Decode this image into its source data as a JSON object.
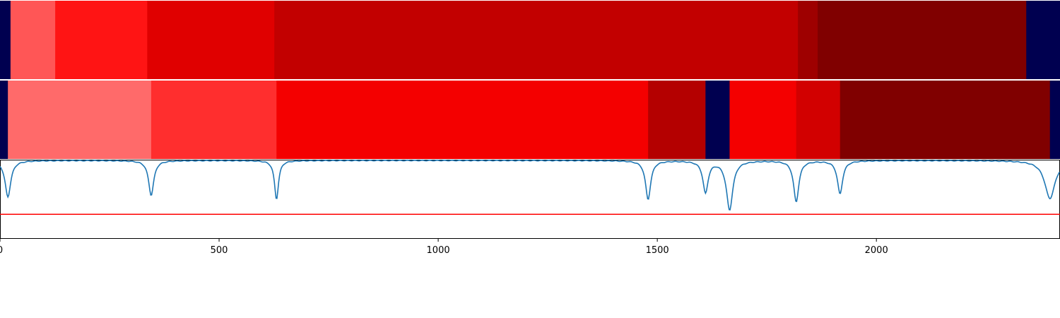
{
  "chart_data": {
    "type": "heatmap",
    "x_range": [
      0,
      2419
    ],
    "x_ticks": [
      0,
      500,
      1000,
      1500,
      2000
    ],
    "x_tick_labels": [
      "0",
      "500",
      "1000",
      "1500",
      "2000"
    ],
    "tracks": [
      {
        "segments": [
          {
            "start": 0,
            "end": 24,
            "color": "#000050"
          },
          {
            "start": 24,
            "end": 126,
            "color": "#ff5656"
          },
          {
            "start": 126,
            "end": 336,
            "color": "#ff1414"
          },
          {
            "start": 336,
            "end": 626,
            "color": "#e00000"
          },
          {
            "start": 626,
            "end": 1821,
            "color": "#c20000"
          },
          {
            "start": 1821,
            "end": 1866,
            "color": "#9e0000"
          },
          {
            "start": 1866,
            "end": 2342,
            "color": "#800000"
          },
          {
            "start": 2342,
            "end": 2419,
            "color": "#000050"
          }
        ]
      },
      {
        "segments": [
          {
            "start": 0,
            "end": 18,
            "color": "#000050"
          },
          {
            "start": 18,
            "end": 345,
            "color": "#ff6a6a"
          },
          {
            "start": 345,
            "end": 631,
            "color": "#ff2e2e"
          },
          {
            "start": 631,
            "end": 1479,
            "color": "#f40000"
          },
          {
            "start": 1479,
            "end": 1610,
            "color": "#b40000"
          },
          {
            "start": 1610,
            "end": 1665,
            "color": "#000050"
          },
          {
            "start": 1665,
            "end": 1817,
            "color": "#f40000"
          },
          {
            "start": 1817,
            "end": 1917,
            "color": "#d20000"
          },
          {
            "start": 1917,
            "end": 2396,
            "color": "#800000"
          },
          {
            "start": 2396,
            "end": 2419,
            "color": "#000050"
          }
        ]
      }
    ],
    "line": {
      "color": "#1f77b4",
      "y_range": [
        0,
        1
      ],
      "baseline": 0.99,
      "dips": [
        {
          "x": 18,
          "depth": 0.46,
          "width": 10
        },
        {
          "x": 345,
          "depth": 0.44,
          "width": 9
        },
        {
          "x": 631,
          "depth": 0.49,
          "width": 7
        },
        {
          "x": 1479,
          "depth": 0.49,
          "width": 9
        },
        {
          "x": 1610,
          "depth": 0.4,
          "width": 9
        },
        {
          "x": 1665,
          "depth": 0.62,
          "width": 11
        },
        {
          "x": 1817,
          "depth": 0.52,
          "width": 9
        },
        {
          "x": 1917,
          "depth": 0.42,
          "width": 9
        },
        {
          "x": 2396,
          "depth": 0.48,
          "width": 18
        }
      ],
      "threshold": {
        "value": 0.31,
        "color": "#ff0000"
      }
    }
  }
}
